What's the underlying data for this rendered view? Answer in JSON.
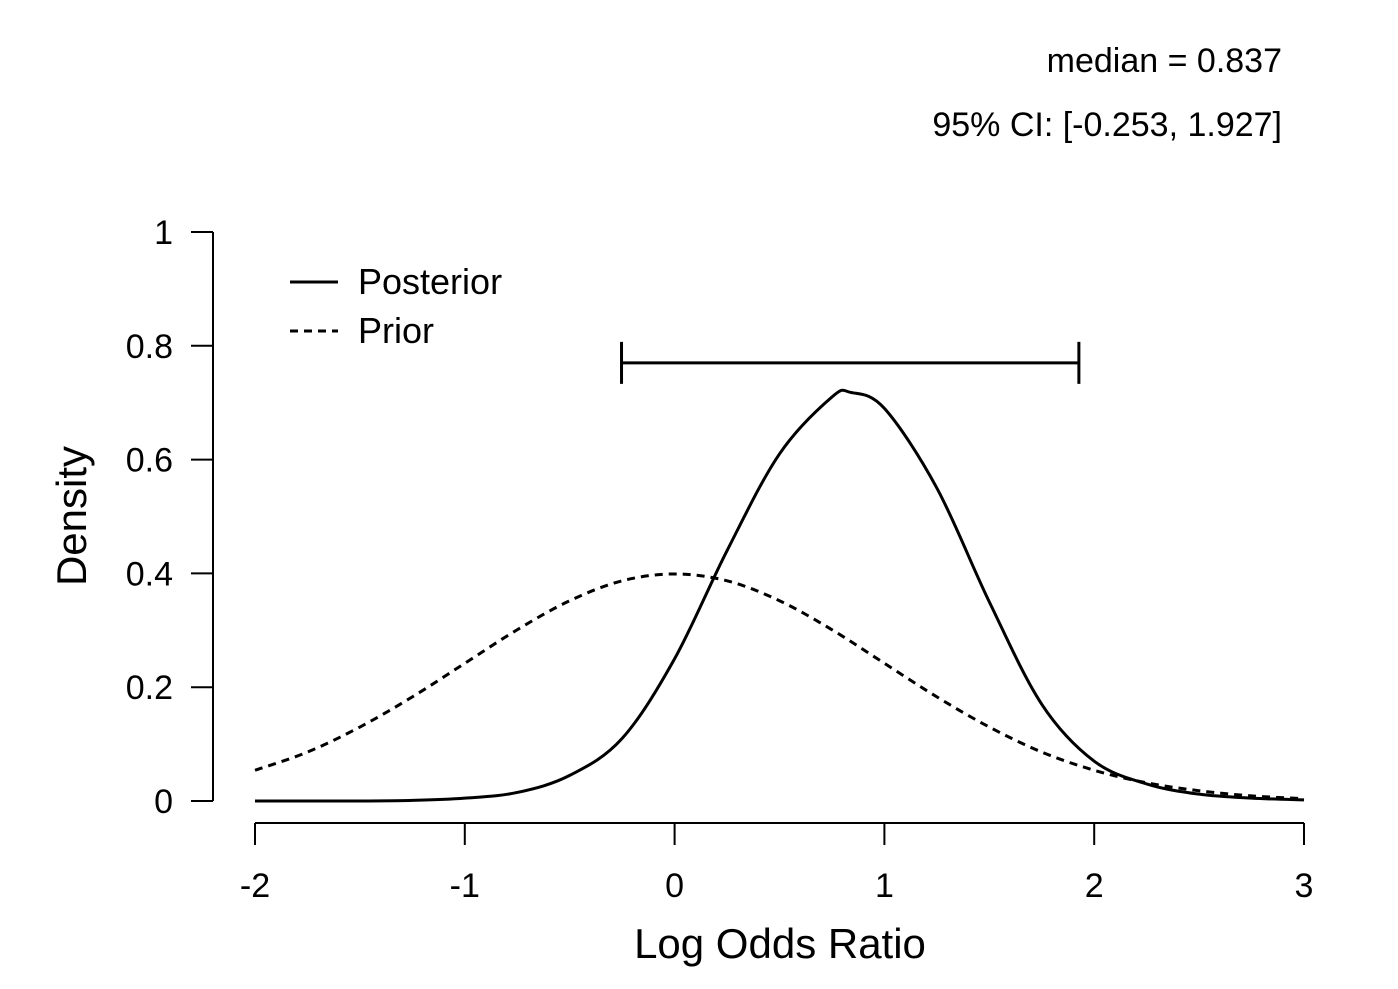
{
  "chart_data": {
    "type": "line",
    "annotations": {
      "median_text": "median = 0.837",
      "ci_text": "95% CI: [-0.253, 1.927]"
    },
    "median": 0.837,
    "ci": [
      -0.253,
      1.927
    ],
    "ci_bar_y": 0.77,
    "xlabel": "Log Odds Ratio",
    "ylabel": "Density",
    "xlim": [
      -2,
      3
    ],
    "ylim": [
      0,
      1
    ],
    "x_ticks": [
      -2,
      -1,
      0,
      1,
      2,
      3
    ],
    "x_tick_labels": [
      "-2",
      "-1",
      "0",
      "1",
      "2",
      "3"
    ],
    "y_ticks": [
      0,
      0.2,
      0.4,
      0.6,
      0.8,
      1
    ],
    "y_tick_labels": [
      "0",
      "0.2",
      "0.4",
      "0.6",
      "0.8",
      "1"
    ],
    "grid": false,
    "legend_position": "top-left",
    "series": [
      {
        "name": "Posterior",
        "style": "solid",
        "x": [
          -2.0,
          -1.75,
          -1.5,
          -1.25,
          -1.0,
          -0.75,
          -0.5,
          -0.25,
          0.0,
          0.25,
          0.5,
          0.75,
          0.84,
          1.0,
          1.25,
          1.5,
          1.75,
          2.0,
          2.25,
          2.5,
          2.75,
          3.0
        ],
        "y": [
          0.0,
          0.0,
          0.0,
          0.001,
          0.005,
          0.015,
          0.045,
          0.11,
          0.25,
          0.44,
          0.61,
          0.71,
          0.718,
          0.69,
          0.55,
          0.35,
          0.17,
          0.07,
          0.03,
          0.012,
          0.005,
          0.002
        ]
      },
      {
        "name": "Prior",
        "style": "dashed",
        "x": [
          -2.0,
          -1.75,
          -1.5,
          -1.25,
          -1.0,
          -0.75,
          -0.5,
          -0.25,
          0.0,
          0.25,
          0.5,
          0.75,
          1.0,
          1.25,
          1.5,
          1.75,
          2.0,
          2.25,
          2.5,
          2.75,
          3.0
        ],
        "y": [
          0.054,
          0.086,
          0.13,
          0.183,
          0.242,
          0.301,
          0.352,
          0.387,
          0.399,
          0.387,
          0.352,
          0.301,
          0.242,
          0.183,
          0.13,
          0.086,
          0.054,
          0.032,
          0.018,
          0.009,
          0.004
        ]
      }
    ]
  }
}
